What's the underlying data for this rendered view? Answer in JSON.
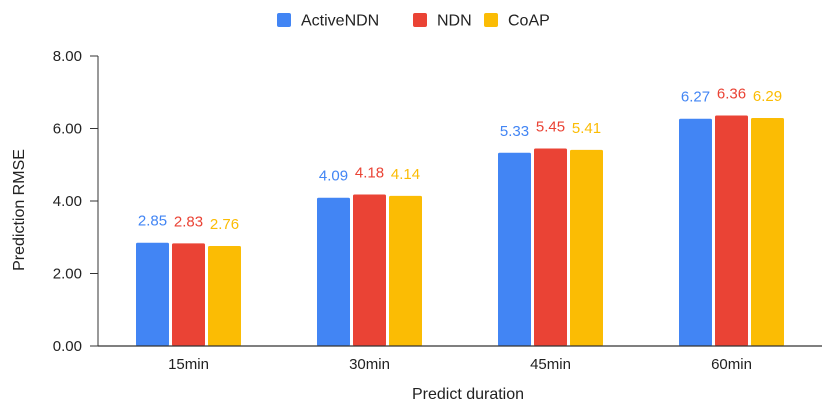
{
  "chart_data": {
    "type": "bar",
    "title": "",
    "xlabel": "Predict duration",
    "ylabel": "Prediction RMSE",
    "categories": [
      "15min",
      "30min",
      "45min",
      "60min"
    ],
    "series": [
      {
        "name": "ActiveNDN",
        "color": "#4285F4",
        "values": [
          2.85,
          4.09,
          5.33,
          6.27
        ],
        "labels": [
          "2.85",
          "4.09",
          "5.33",
          "6.27"
        ]
      },
      {
        "name": "NDN",
        "color": "#EA4335",
        "values": [
          2.83,
          4.18,
          5.45,
          6.36
        ],
        "labels": [
          "2.83",
          "4.18",
          "5.45",
          "6.36"
        ]
      },
      {
        "name": "CoAP",
        "color": "#FBBC04",
        "values": [
          2.76,
          4.14,
          5.41,
          6.29
        ],
        "labels": [
          "2.76",
          "4.14",
          "5.41",
          "6.29"
        ]
      }
    ],
    "ylim": [
      0,
      8
    ],
    "yticks": [
      "0.00",
      "2.00",
      "4.00",
      "6.00",
      "8.00"
    ],
    "ytick_values": [
      0,
      2,
      4,
      6,
      8
    ],
    "grid": false,
    "legend_position": "top-center"
  }
}
